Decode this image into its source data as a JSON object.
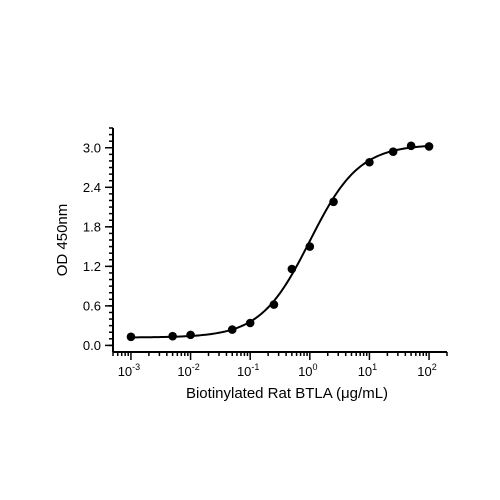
{
  "chart_data": {
    "type": "scatter",
    "title": "",
    "xlabel": "Biotinylated Rat BTLA (μg/mL)",
    "ylabel": "OD 450nm",
    "x_scale": "log",
    "xlim": [
      0.0005,
      200
    ],
    "ylim": [
      -0.1,
      3.3
    ],
    "x_ticks": [
      {
        "value": 0.001,
        "base": "10",
        "exp": "-3"
      },
      {
        "value": 0.01,
        "base": "10",
        "exp": "-2"
      },
      {
        "value": 0.1,
        "base": "10",
        "exp": "-1"
      },
      {
        "value": 1,
        "base": "10",
        "exp": "0"
      },
      {
        "value": 10,
        "base": "10",
        "exp": "1"
      },
      {
        "value": 100,
        "base": "10",
        "exp": "2"
      }
    ],
    "y_ticks": [
      {
        "value": 0,
        "label": "0.0"
      },
      {
        "value": 0.6,
        "label": "0.6"
      },
      {
        "value": 1.2,
        "label": "1.2"
      },
      {
        "value": 1.8,
        "label": "1.8"
      },
      {
        "value": 2.4,
        "label": "2.4"
      },
      {
        "value": 3.0,
        "label": "3.0"
      }
    ],
    "grid": false,
    "legend": "none",
    "series": [
      {
        "x": [
          0.001,
          0.005,
          0.01,
          0.05,
          0.1,
          0.25,
          0.5,
          1,
          2.5,
          10,
          25,
          50,
          100
        ],
        "y": [
          0.13,
          0.14,
          0.16,
          0.24,
          0.34,
          0.62,
          1.16,
          1.5,
          2.18,
          2.78,
          2.94,
          3.03,
          3.02
        ],
        "fit": {
          "model": "4PL",
          "bottom": 0.12,
          "top": 3.05,
          "ec50": 1.0,
          "hill": 1.05
        }
      }
    ],
    "colors": {
      "marker": "#000000",
      "line": "#000000"
    }
  }
}
